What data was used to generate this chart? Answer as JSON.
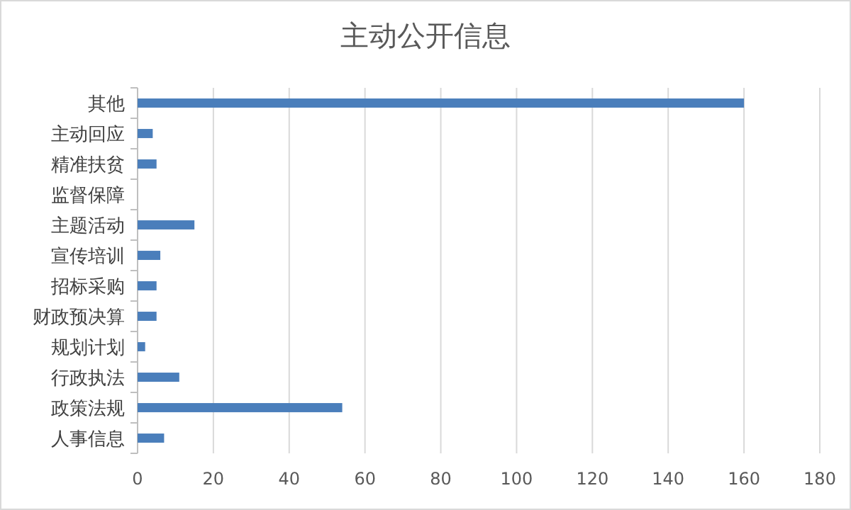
{
  "chart_data": {
    "type": "bar",
    "orientation": "horizontal",
    "title": "主动公开信息",
    "categories": [
      "其他",
      "主动回应",
      "精准扶贫",
      "监督保障",
      "主题活动",
      "宣传培训",
      "招标采购",
      "财政预决算",
      "规划计划",
      "行政执法",
      "政策法规",
      "人事信息"
    ],
    "values": [
      160,
      4,
      5,
      0,
      15,
      6,
      5,
      5,
      2,
      11,
      54,
      7
    ],
    "color": "#4a7ebb",
    "xlim": [
      0,
      180
    ],
    "xticks": [
      0,
      20,
      40,
      60,
      80,
      100,
      120,
      140,
      160,
      180
    ],
    "grid": "x"
  }
}
